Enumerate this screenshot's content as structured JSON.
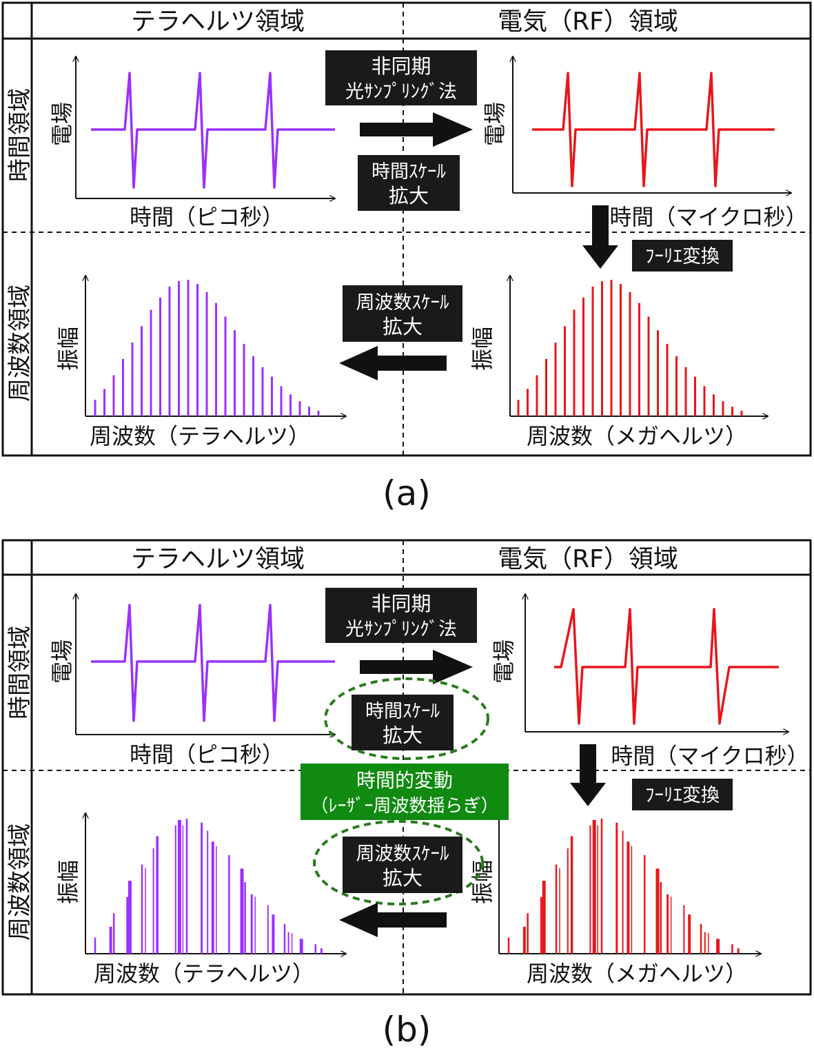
{
  "panels": [
    {
      "id": "a",
      "caption": "(a)",
      "col_header_left": "テラヘルツ領域",
      "col_header_right": "電気（RF）領域",
      "row_label_time": "時間領域",
      "row_label_freq": "周波数領域",
      "time_ylabel": "電場",
      "freq_ylabel": "振幅",
      "thz_time_xlabel": "時間（ピコ秒）",
      "rf_time_xlabel": "時間（マイクロ秒）",
      "thz_freq_xlabel": "周波数（テラヘルツ）",
      "rf_freq_xlabel": "周波数（メガヘルツ）",
      "box_async_1": "非同期",
      "box_async_2": "光ｻﾝﾌﾟﾘﾝｸﾞ法",
      "box_timescale_1": "時間ｽｹｰﾙ",
      "box_timescale_2": "拡大",
      "box_fourier": "ﾌｰﾘｴ変換",
      "box_freqscale_1": "周波数ｽｹｰﾙ",
      "box_freqscale_2": "拡大"
    },
    {
      "id": "b",
      "caption": "(b)",
      "col_header_left": "テラヘルツ領域",
      "col_header_right": "電気（RF）領域",
      "row_label_time": "時間領域",
      "row_label_freq": "周波数領域",
      "time_ylabel": "電場",
      "freq_ylabel": "振幅",
      "thz_time_xlabel": "時間（ピコ秒）",
      "rf_time_xlabel": "時間（マイクロ秒）",
      "thz_freq_xlabel": "周波数（テラヘルツ）",
      "rf_freq_xlabel": "周波数（メガヘルツ）",
      "box_async_1": "非同期",
      "box_async_2": "光ｻﾝﾌﾟﾘﾝｸﾞ法",
      "box_timescale_1": "時間ｽｹｰﾙ",
      "box_timescale_2": "拡大",
      "box_fourier": "ﾌｰﾘｴ変換",
      "box_freqscale_1": "周波数ｽｹｰﾙ",
      "box_freqscale_2": "拡大",
      "box_fluct_1": "時間的変動",
      "box_fluct_2": "（ﾚｰｻﾞｰ周波数揺らぎ）"
    }
  ],
  "colors": {
    "thz": "#9b30ff",
    "rf": "#e8161b",
    "box": "#1a1a1a",
    "fluct_box": "#108a10",
    "ellipse": "#2a7a1e"
  },
  "spectrum_profile": [
    0.12,
    0.2,
    0.3,
    0.42,
    0.54,
    0.66,
    0.78,
    0.87,
    0.95,
    0.99,
    1.0,
    0.97,
    0.91,
    0.83,
    0.73,
    0.63,
    0.53,
    0.44,
    0.36,
    0.29,
    0.22,
    0.16,
    0.11,
    0.07,
    0.04
  ],
  "icons": [
    "right-arrow-icon",
    "left-arrow-icon",
    "down-arrow-icon",
    "dashed-ellipse-icon"
  ]
}
